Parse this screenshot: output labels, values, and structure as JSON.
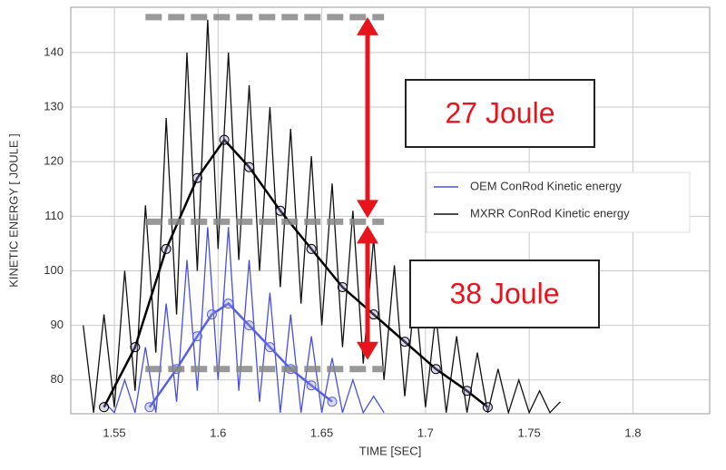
{
  "chart_data": {
    "type": "line",
    "x_label": "TIME [SEC]",
    "y_label": "KINETIC ENERGY [ JOULE ]",
    "xlim": [
      1.529,
      1.837
    ],
    "ylim": [
      73.8,
      148.3
    ],
    "xticks": [
      1.55,
      1.6,
      1.65,
      1.7,
      1.75,
      1.8
    ],
    "yticks": [
      80,
      90,
      100,
      110,
      120,
      130,
      140
    ],
    "grid": true,
    "legend": "right",
    "series": [
      {
        "name": "MXRR ConRod Kinetic energy",
        "color": "#111111",
        "x": [
          1.535,
          1.54,
          1.545,
          1.55,
          1.555,
          1.56,
          1.565,
          1.57,
          1.575,
          1.58,
          1.585,
          1.59,
          1.595,
          1.6,
          1.605,
          1.61,
          1.615,
          1.62,
          1.625,
          1.63,
          1.635,
          1.64,
          1.645,
          1.65,
          1.655,
          1.66,
          1.665,
          1.67,
          1.675,
          1.68,
          1.685,
          1.69,
          1.695,
          1.7,
          1.705,
          1.71,
          1.715,
          1.72,
          1.725,
          1.73,
          1.735,
          1.74,
          1.745,
          1.75,
          1.755,
          1.76,
          1.765
        ],
        "values": [
          90,
          74,
          92,
          75,
          100,
          78,
          112,
          85,
          128,
          92,
          140,
          100,
          146,
          104,
          140,
          102,
          134,
          100,
          130,
          97,
          126,
          94,
          121,
          90,
          116,
          86,
          111,
          83,
          106,
          80,
          101,
          77,
          96,
          75,
          92,
          74,
          88,
          74,
          85,
          74,
          82,
          74,
          80,
          74,
          78,
          74,
          76
        ]
      },
      {
        "name": "OEM ConRod Kinetic energy",
        "color": "#4a4ee0",
        "x": [
          1.545,
          1.55,
          1.555,
          1.56,
          1.565,
          1.57,
          1.575,
          1.58,
          1.585,
          1.59,
          1.595,
          1.6,
          1.605,
          1.61,
          1.615,
          1.62,
          1.625,
          1.63,
          1.635,
          1.64,
          1.645,
          1.65,
          1.655,
          1.66,
          1.665,
          1.67,
          1.675,
          1.68
        ],
        "values": [
          76,
          74,
          80,
          74,
          86,
          74,
          94,
          76,
          102,
          78,
          108,
          80,
          108,
          78,
          102,
          76,
          96,
          74,
          92,
          74,
          88,
          74,
          84,
          74,
          80,
          74,
          77,
          74
        ]
      }
    ],
    "trends": [
      {
        "color": "#000000",
        "x": [
          1.545,
          1.56,
          1.575,
          1.59,
          1.603,
          1.615,
          1.63,
          1.645,
          1.66,
          1.675,
          1.69,
          1.705,
          1.72,
          1.73
        ],
        "values": [
          75,
          86,
          104,
          117,
          124,
          119,
          111,
          104,
          97,
          92,
          87,
          82,
          78,
          75
        ]
      },
      {
        "color": "#5560e8",
        "x": [
          1.567,
          1.58,
          1.59,
          1.597,
          1.605,
          1.615,
          1.625,
          1.635,
          1.645,
          1.655
        ],
        "values": [
          75,
          82,
          88,
          92,
          94,
          90,
          86,
          82,
          79,
          76
        ]
      }
    ],
    "reference_lines": [
      {
        "y": 146.5,
        "x": [
          1.565,
          1.68
        ]
      },
      {
        "y": 109,
        "x": [
          1.565,
          1.68
        ]
      },
      {
        "y": 82,
        "x": [
          1.565,
          1.68
        ]
      }
    ],
    "annotations": [
      "27 Joule",
      "38 Joule"
    ]
  }
}
